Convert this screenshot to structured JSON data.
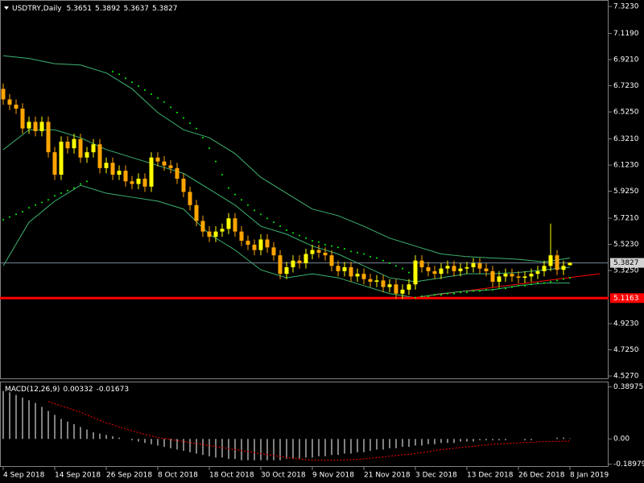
{
  "chart_data": {
    "type": "candlestick",
    "title": "USDTRY,Daily",
    "categories": [
      "4 Sep 2018",
      null,
      null,
      null,
      null,
      null,
      null,
      null,
      "14 Sep 2018",
      null,
      null,
      null,
      null,
      null,
      null,
      null,
      "26 Sep 2018",
      null,
      null,
      null,
      null,
      null,
      null,
      null,
      "8 Oct 2018",
      null,
      null,
      null,
      null,
      null,
      null,
      null,
      "18 Oct 2018",
      null,
      null,
      null,
      null,
      null,
      null,
      null,
      "30 Oct 2018",
      null,
      null,
      null,
      null,
      null,
      null,
      null,
      "9 Nov 2018",
      null,
      null,
      null,
      null,
      null,
      null,
      null,
      "21 Nov 2018",
      null,
      null,
      null,
      null,
      null,
      null,
      null,
      "3 Dec 2018",
      null,
      null,
      null,
      null,
      null,
      null,
      null,
      "13 Dec 2018",
      null,
      null,
      null,
      null,
      null,
      null,
      null,
      "26 Dec 2018",
      null,
      null,
      null,
      null,
      null,
      null,
      null,
      "8 Jan 2019"
    ],
    "open": [
      6.7,
      6.62,
      6.58,
      6.55,
      6.4,
      6.45,
      6.38,
      6.45,
      6.22,
      6.05,
      6.3,
      6.25,
      6.32,
      6.18,
      6.22,
      6.28,
      6.1,
      6.14,
      6.05,
      6.08,
      6.0,
      5.98,
      6.02,
      5.96,
      6.18,
      6.15,
      6.12,
      6.1,
      6.02,
      5.92,
      5.82,
      5.7,
      5.62,
      5.58,
      5.62,
      5.64,
      5.72,
      5.62,
      5.55,
      5.52,
      5.48,
      5.56,
      5.5,
      5.44,
      5.3,
      5.35,
      5.4,
      5.38,
      5.45,
      5.48,
      5.46,
      5.44,
      5.36,
      5.32,
      5.35,
      5.28,
      5.3,
      5.26,
      5.24,
      5.25,
      5.2,
      5.22,
      5.15,
      5.18,
      5.22,
      5.4,
      5.35,
      5.32,
      5.3,
      5.34,
      5.36,
      5.32,
      5.34,
      5.35,
      5.38,
      5.34,
      5.32,
      5.24,
      5.28,
      5.3,
      5.28,
      5.27,
      5.28,
      5.3,
      5.32,
      5.36,
      5.44,
      5.33,
      5.3651
    ],
    "high": [
      6.74,
      6.66,
      6.62,
      6.59,
      6.49,
      6.49,
      6.49,
      6.49,
      6.26,
      6.34,
      6.34,
      6.36,
      6.36,
      6.26,
      6.32,
      6.32,
      6.18,
      6.18,
      6.12,
      6.12,
      6.04,
      6.06,
      6.06,
      6.22,
      6.22,
      6.19,
      6.16,
      6.14,
      6.06,
      5.96,
      5.86,
      5.74,
      5.66,
      5.66,
      5.68,
      5.76,
      5.76,
      5.66,
      5.59,
      5.56,
      5.6,
      5.6,
      5.54,
      5.48,
      5.39,
      5.44,
      5.44,
      5.49,
      5.52,
      5.52,
      5.5,
      5.48,
      5.4,
      5.39,
      5.39,
      5.34,
      5.34,
      5.3,
      5.29,
      5.29,
      5.26,
      5.26,
      5.22,
      5.26,
      5.44,
      5.44,
      5.39,
      5.36,
      5.38,
      5.4,
      5.4,
      5.38,
      5.39,
      5.42,
      5.42,
      5.38,
      5.36,
      5.32,
      5.34,
      5.34,
      5.32,
      5.32,
      5.34,
      5.36,
      5.4,
      5.68,
      5.48,
      5.4,
      5.3892
    ],
    "low": [
      6.58,
      6.54,
      6.51,
      6.36,
      6.36,
      6.34,
      6.34,
      6.18,
      6.01,
      6.01,
      6.21,
      6.21,
      6.14,
      6.14,
      6.18,
      6.06,
      6.06,
      6.01,
      6.01,
      5.96,
      5.94,
      5.94,
      5.92,
      5.92,
      6.11,
      6.08,
      6.06,
      5.98,
      5.88,
      5.78,
      5.66,
      5.58,
      5.54,
      5.54,
      5.58,
      5.6,
      5.58,
      5.51,
      5.48,
      5.44,
      5.44,
      5.46,
      5.4,
      5.26,
      5.26,
      5.31,
      5.34,
      5.34,
      5.41,
      5.42,
      5.4,
      5.32,
      5.28,
      5.28,
      5.24,
      5.24,
      5.22,
      5.2,
      5.2,
      5.16,
      5.16,
      5.11,
      5.11,
      5.14,
      5.18,
      5.31,
      5.28,
      5.26,
      5.26,
      5.3,
      5.28,
      5.28,
      5.3,
      5.31,
      5.3,
      5.28,
      5.2,
      5.2,
      5.24,
      5.24,
      5.23,
      5.23,
      5.24,
      5.26,
      5.28,
      5.32,
      5.29,
      5.29,
      5.3637
    ],
    "close": [
      6.62,
      6.58,
      6.55,
      6.4,
      6.45,
      6.38,
      6.45,
      6.22,
      6.05,
      6.3,
      6.25,
      6.32,
      6.18,
      6.22,
      6.28,
      6.1,
      6.14,
      6.05,
      6.08,
      6.0,
      5.98,
      6.02,
      5.96,
      6.18,
      6.15,
      6.12,
      6.1,
      6.02,
      5.92,
      5.82,
      5.7,
      5.62,
      5.58,
      5.62,
      5.64,
      5.72,
      5.62,
      5.55,
      5.52,
      5.48,
      5.56,
      5.5,
      5.44,
      5.3,
      5.35,
      5.4,
      5.38,
      5.45,
      5.48,
      5.46,
      5.44,
      5.36,
      5.32,
      5.35,
      5.28,
      5.3,
      5.26,
      5.24,
      5.25,
      5.2,
      5.22,
      5.15,
      5.18,
      5.22,
      5.4,
      5.35,
      5.32,
      5.3,
      5.34,
      5.36,
      5.32,
      5.34,
      5.35,
      5.38,
      5.34,
      5.32,
      5.24,
      5.28,
      5.3,
      5.28,
      5.27,
      5.28,
      5.3,
      5.32,
      5.36,
      5.44,
      5.33,
      5.36,
      5.3827
    ],
    "up_color": "#ffff00",
    "down_color": "#ffa500",
    "ylim": [
      4.509,
      7.366
    ],
    "yticks": [
      {
        "value": 7.323,
        "label": "7.3230"
      },
      {
        "value": 7.119,
        "label": "7.1190"
      },
      {
        "value": 6.921,
        "label": "6.9210"
      },
      {
        "value": 6.723,
        "label": "6.7230"
      },
      {
        "value": 6.525,
        "label": "6.5250"
      },
      {
        "value": 6.321,
        "label": "6.3210"
      },
      {
        "value": 6.123,
        "label": "6.1230"
      },
      {
        "value": 5.925,
        "label": "5.9250"
      },
      {
        "value": 5.721,
        "label": "5.7210"
      },
      {
        "value": 5.523,
        "label": "5.5230"
      },
      {
        "value": 5.325,
        "label": "5.3250"
      },
      {
        "value": 4.923,
        "label": "4.9230"
      },
      {
        "value": 4.725,
        "label": "4.7250"
      },
      {
        "value": 4.527,
        "label": "4.5270"
      }
    ],
    "band_x": [
      0,
      4,
      8,
      12,
      16,
      20,
      24,
      28,
      32,
      36,
      40,
      44,
      48,
      52,
      56,
      60,
      64,
      68,
      72,
      76,
      80,
      84,
      88
    ],
    "bands": [
      {
        "color": "#3cb371",
        "values": [
          6.95,
          6.93,
          6.89,
          6.88,
          6.82,
          6.7,
          6.52,
          6.39,
          6.33,
          6.21,
          6.03,
          5.91,
          5.79,
          5.74,
          5.66,
          5.57,
          5.51,
          5.45,
          5.43,
          5.42,
          5.41,
          5.39,
          5.42
        ]
      },
      {
        "color": "#3cb371",
        "values": [
          6.24,
          6.39,
          6.39,
          6.33,
          6.24,
          6.18,
          6.12,
          6.06,
          5.94,
          5.82,
          5.66,
          5.6,
          5.51,
          5.45,
          5.36,
          5.27,
          5.24,
          5.27,
          5.3,
          5.3,
          5.31,
          5.33,
          5.35
        ]
      },
      {
        "color": "#3cb371",
        "values": [
          5.36,
          5.69,
          5.85,
          5.97,
          5.91,
          5.88,
          5.85,
          5.79,
          5.6,
          5.48,
          5.33,
          5.27,
          5.3,
          5.27,
          5.21,
          5.15,
          5.12,
          5.15,
          5.17,
          5.18,
          5.21,
          5.23,
          5.23
        ]
      }
    ],
    "sar": {
      "color": "#00ff00",
      "values": [
        5.71,
        5.73,
        5.75,
        5.77,
        5.8,
        5.82,
        5.84,
        5.86,
        5.89,
        5.91,
        5.93,
        5.95,
        5.98,
        6.0,
        null,
        null,
        null,
        6.83,
        6.81,
        6.78,
        6.75,
        6.72,
        6.69,
        6.66,
        6.63,
        6.6,
        6.56,
        6.52,
        6.48,
        6.44,
        6.4,
        6.33,
        6.25,
        6.15,
        6.05,
        5.95,
        5.9,
        5.86,
        5.82,
        5.78,
        5.75,
        5.72,
        5.69,
        5.66,
        5.63,
        5.61,
        5.59,
        5.57,
        5.55,
        5.54,
        5.52,
        5.51,
        5.5,
        5.49,
        5.47,
        5.46,
        5.45,
        5.43,
        5.42,
        5.4,
        5.38,
        5.36,
        5.34,
        5.31,
        5.12,
        5.13,
        5.13,
        5.14,
        5.14,
        5.15,
        5.15,
        5.16,
        5.16,
        5.17,
        5.17,
        5.18,
        5.18,
        5.19,
        5.19,
        5.2,
        5.21,
        5.21,
        5.22,
        5.23,
        5.23,
        5.24,
        5.25,
        5.26,
        5.27
      ]
    },
    "price_line_color": "#778899",
    "level": {
      "value": 5.1163,
      "color": "#ff0000"
    },
    "macd": {
      "title": "MACD(12,26,9)",
      "histogram": [
        0.36,
        0.35,
        0.33,
        0.31,
        0.29,
        0.27,
        0.24,
        0.21,
        0.18,
        0.15,
        0.13,
        0.11,
        0.09,
        0.07,
        0.05,
        0.04,
        0.03,
        0.02,
        0.01,
        0.0,
        -0.01,
        -0.02,
        -0.03,
        -0.04,
        -0.05,
        -0.06,
        -0.07,
        -0.08,
        -0.09,
        -0.1,
        -0.11,
        -0.12,
        -0.13,
        -0.14,
        -0.14,
        -0.15,
        -0.15,
        -0.16,
        -0.16,
        -0.16,
        -0.16,
        -0.16,
        -0.16,
        -0.16,
        -0.15,
        -0.15,
        -0.15,
        -0.14,
        -0.14,
        -0.13,
        -0.13,
        -0.12,
        -0.12,
        -0.11,
        -0.11,
        -0.1,
        -0.1,
        -0.09,
        -0.08,
        -0.08,
        -0.07,
        -0.07,
        -0.06,
        -0.06,
        -0.05,
        -0.05,
        -0.04,
        -0.04,
        -0.03,
        -0.03,
        -0.03,
        -0.02,
        -0.02,
        -0.02,
        -0.01,
        -0.01,
        -0.01,
        -0.01,
        -0.01,
        0.0,
        0.0,
        -0.01,
        -0.01,
        0.0,
        0.0,
        0.0,
        0.01,
        0.01,
        0.00332
      ],
      "histogram_color": "#ffffff",
      "signal": {
        "color": "#ff0000",
        "x": [
          7,
          12,
          16,
          20,
          24,
          28,
          32,
          36,
          40,
          44,
          48,
          52,
          56,
          60,
          64,
          68,
          72,
          76,
          80,
          84,
          88
        ],
        "values": [
          0.28,
          0.2,
          0.12,
          0.06,
          0.01,
          -0.02,
          -0.05,
          -0.08,
          -0.11,
          -0.14,
          -0.16,
          -0.16,
          -0.15,
          -0.13,
          -0.11,
          -0.08,
          -0.06,
          -0.04,
          -0.03,
          -0.02,
          -0.01673
        ]
      },
      "ylim": [
        -0.21,
        0.43
      ],
      "yticks": [
        0.38975,
        {
          "value": 0,
          "label": "0.00"
        },
        -0.18979
      ]
    }
  }
}
